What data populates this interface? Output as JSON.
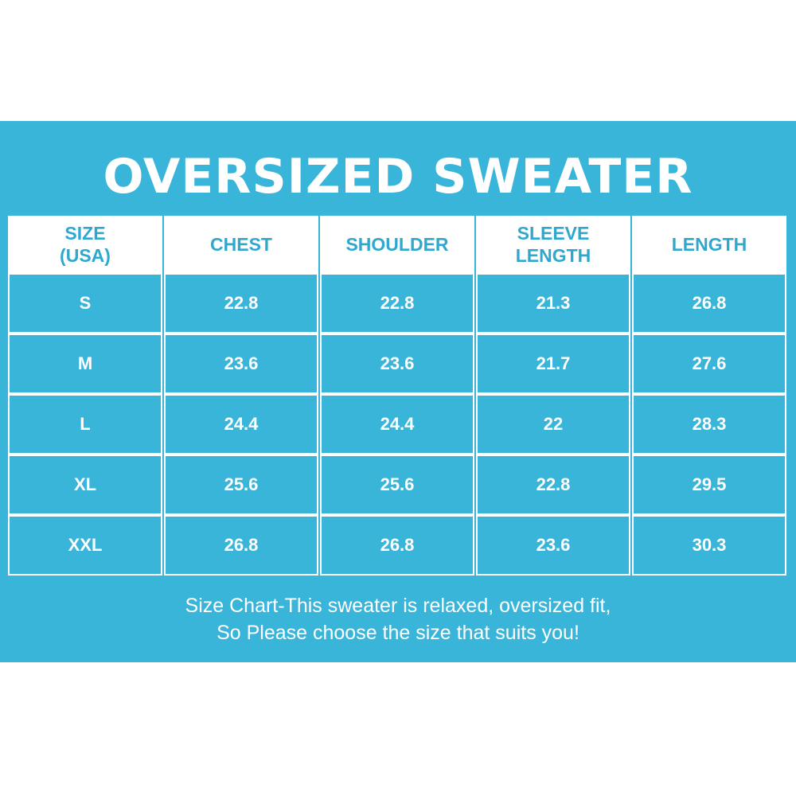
{
  "title": "OVERSIZED SWEATER",
  "table": {
    "headers": [
      "SIZE\n(USA)",
      "CHEST",
      "SHOULDER",
      "SLEEVE\nLENGTH",
      "LENGTH"
    ],
    "rows": [
      [
        "S",
        "22.8",
        "22.8",
        "21.3",
        "26.8"
      ],
      [
        "M",
        "23.6",
        "23.6",
        "21.7",
        "27.6"
      ],
      [
        "L",
        "24.4",
        "24.4",
        "22",
        "28.3"
      ],
      [
        "XL",
        "25.6",
        "25.6",
        "22.8",
        "29.5"
      ],
      [
        "XXL",
        "26.8",
        "26.8",
        "23.6",
        "30.3"
      ]
    ]
  },
  "note": {
    "line1": "Size Chart-This sweater is relaxed, oversized fit,",
    "line2": "So Please choose the size that suits you!"
  },
  "colors": {
    "panel": "#3ab5da",
    "header_text": "#2fa8d0",
    "text": "#ffffff"
  }
}
